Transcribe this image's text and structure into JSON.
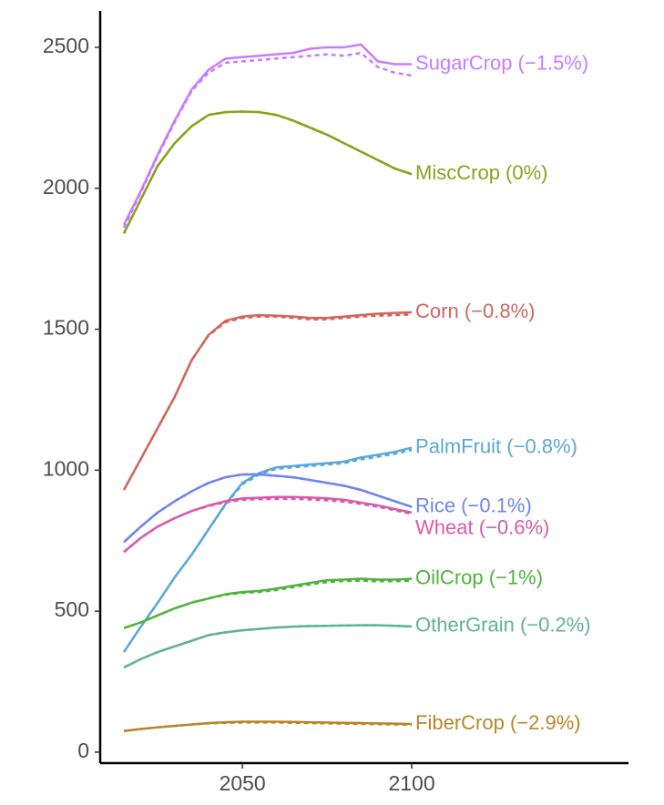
{
  "chart_data": {
    "type": "line",
    "x": [
      2015,
      2020,
      2025,
      2030,
      2035,
      2040,
      2045,
      2050,
      2055,
      2060,
      2065,
      2070,
      2075,
      2080,
      2085,
      2090,
      2095,
      2100
    ],
    "xlim": [
      2008,
      2164
    ],
    "xticks": [
      2050,
      2100
    ],
    "ylim": [
      -39,
      2629
    ],
    "yticks": [
      0,
      500,
      1000,
      1500,
      2000,
      2500
    ],
    "grid": false,
    "series": [
      {
        "name": "SugarCrop (−1.5%)",
        "color": "#c77cff",
        "values": [
          1870,
          1990,
          2120,
          2240,
          2350,
          2420,
          2460,
          2465,
          2470,
          2475,
          2480,
          2495,
          2500,
          2500,
          2510,
          2450,
          2440,
          2440
        ],
        "dashed_values": [
          1860,
          1985,
          2115,
          2235,
          2345,
          2410,
          2445,
          2450,
          2455,
          2460,
          2465,
          2470,
          2475,
          2470,
          2480,
          2430,
          2410,
          2400
        ]
      },
      {
        "name": "MiscCrop (0%)",
        "color": "#8ea01c",
        "values": [
          1840,
          1960,
          2080,
          2160,
          2220,
          2260,
          2270,
          2272,
          2270,
          2260,
          2240,
          2215,
          2190,
          2160,
          2130,
          2100,
          2070,
          2050
        ],
        "dashed_values": [
          1840,
          1960,
          2080,
          2160,
          2220,
          2260,
          2270,
          2272,
          2270,
          2260,
          2240,
          2215,
          2190,
          2160,
          2130,
          2100,
          2070,
          2050
        ]
      },
      {
        "name": "Corn (−0.8%)",
        "color": "#d0665e",
        "values": [
          930,
          1040,
          1150,
          1260,
          1390,
          1480,
          1530,
          1545,
          1550,
          1548,
          1545,
          1540,
          1540,
          1545,
          1550,
          1555,
          1558,
          1560
        ],
        "dashed_values": [
          930,
          1040,
          1150,
          1260,
          1390,
          1478,
          1525,
          1540,
          1545,
          1545,
          1540,
          1535,
          1535,
          1540,
          1545,
          1548,
          1550,
          1552
        ]
      },
      {
        "name": "PalmFruit (−0.8%)",
        "color": "#5aa7d9",
        "values": [
          355,
          445,
          530,
          620,
          700,
          790,
          880,
          955,
          990,
          1010,
          1015,
          1020,
          1025,
          1030,
          1045,
          1055,
          1065,
          1080
        ],
        "dashed_values": [
          355,
          445,
          530,
          620,
          700,
          790,
          878,
          950,
          985,
          1005,
          1010,
          1015,
          1020,
          1025,
          1038,
          1048,
          1058,
          1072
        ]
      },
      {
        "name": "Rice (−0.1%)",
        "color": "#6f84f0",
        "values": [
          745,
          800,
          850,
          890,
          925,
          955,
          975,
          985,
          985,
          980,
          975,
          965,
          955,
          945,
          930,
          910,
          890,
          870
        ],
        "dashed_values": [
          745,
          800,
          850,
          890,
          925,
          955,
          975,
          985,
          985,
          980,
          975,
          965,
          955,
          945,
          930,
          910,
          890,
          869
        ]
      },
      {
        "name": "Wheat (−0.6%)",
        "color": "#d65aad",
        "values": [
          710,
          760,
          800,
          830,
          855,
          875,
          890,
          900,
          902,
          905,
          905,
          903,
          900,
          895,
          885,
          875,
          862,
          850
        ],
        "dashed_values": [
          710,
          760,
          800,
          830,
          855,
          873,
          886,
          895,
          897,
          898,
          898,
          896,
          893,
          888,
          880,
          870,
          858,
          845
        ]
      },
      {
        "name": "OilCrop (−1%)",
        "color": "#4fb33b",
        "values": [
          440,
          460,
          485,
          510,
          530,
          545,
          560,
          568,
          572,
          580,
          590,
          600,
          610,
          612,
          615,
          612,
          612,
          615
        ],
        "dashed_values": [
          440,
          460,
          485,
          510,
          530,
          545,
          558,
          565,
          568,
          575,
          585,
          595,
          603,
          607,
          608,
          606,
          606,
          608
        ]
      },
      {
        "name": "OtherGrain (−0.2%)",
        "color": "#5fb394",
        "values": [
          300,
          330,
          355,
          375,
          395,
          415,
          425,
          432,
          437,
          442,
          445,
          447,
          448,
          449,
          450,
          450,
          448,
          446
        ],
        "dashed_values": [
          300,
          330,
          355,
          375,
          395,
          415,
          425,
          432,
          437,
          442,
          445,
          447,
          448,
          449,
          450,
          450,
          448,
          445
        ]
      },
      {
        "name": "FiberCrop (−2.9%)",
        "color": "#b8862a",
        "values": [
          75,
          82,
          88,
          93,
          98,
          103,
          106,
          108,
          108,
          108,
          107,
          106,
          105,
          104,
          103,
          102,
          101,
          100
        ],
        "dashed_values": [
          75,
          82,
          88,
          93,
          98,
          102,
          104,
          105,
          105,
          105,
          104,
          103,
          102,
          101,
          100,
          99,
          98,
          97
        ]
      }
    ]
  }
}
